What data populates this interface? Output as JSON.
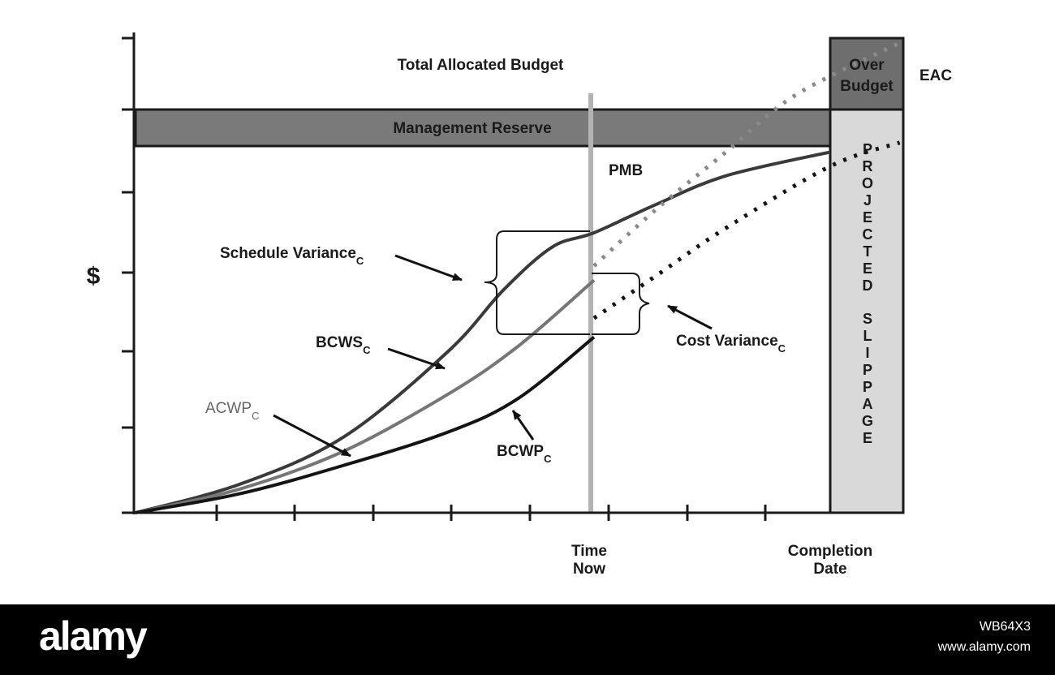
{
  "chart_data": {
    "type": "line",
    "title": "Total Allocated Budget",
    "ylabel": "$",
    "xlabel": "",
    "x_markers": [
      "Time Now",
      "Completion Date"
    ],
    "band_labels": {
      "management_reserve": "Management Reserve",
      "over_budget": [
        "Over",
        "Budget"
      ],
      "eac": "EAC",
      "pmb": "PMB",
      "projected_slippage": "PROJECTED SLIPPAGE"
    },
    "annotations": {
      "schedule_variance": {
        "main": "Schedule Variance",
        "sub": "C"
      },
      "cost_variance": {
        "main": "Cost Variance",
        "sub": "C"
      },
      "bcws": {
        "main": "BCWS",
        "sub": "C"
      },
      "acwp": {
        "main": "ACWP",
        "sub": "C"
      },
      "bcwp": {
        "main": "BCWP",
        "sub": "C"
      }
    },
    "x_domain": [
      0,
      1
    ],
    "y_domain": [
      0,
      1
    ],
    "time_now": 0.66,
    "completion": 1.0,
    "slippage_end": 1.1,
    "pmb_level": 0.76,
    "mr_top": 0.84,
    "eac_top": 0.93,
    "series": [
      {
        "name": "BCWS",
        "style": "solid",
        "color": "#3a3a3a",
        "x": [
          0,
          0.15,
          0.3,
          0.45,
          0.53,
          0.6,
          0.66,
          0.75,
          0.85,
          1.0
        ],
        "y": [
          0,
          0.06,
          0.16,
          0.34,
          0.47,
          0.56,
          0.59,
          0.65,
          0.71,
          0.76
        ]
      },
      {
        "name": "ACWP",
        "style": "solid",
        "color": "#767676",
        "x": [
          0,
          0.15,
          0.3,
          0.45,
          0.55,
          0.66
        ],
        "y": [
          0,
          0.05,
          0.13,
          0.25,
          0.35,
          0.49
        ]
      },
      {
        "name": "ACWP",
        "style": "dotted",
        "color": "#8a8a8a",
        "x": [
          0.66,
          0.75,
          0.85,
          0.95,
          1.1
        ],
        "y": [
          0.52,
          0.64,
          0.76,
          0.88,
          0.99
        ]
      },
      {
        "name": "BCWP",
        "style": "solid",
        "color": "#141414",
        "x": [
          0,
          0.15,
          0.3,
          0.45,
          0.55,
          0.66
        ],
        "y": [
          0,
          0.04,
          0.1,
          0.17,
          0.24,
          0.37
        ]
      },
      {
        "name": "BCWP",
        "style": "dotted",
        "color": "#141414",
        "x": [
          0.66,
          0.75,
          0.85,
          1.0,
          1.1
        ],
        "y": [
          0.41,
          0.5,
          0.6,
          0.73,
          0.78
        ]
      }
    ]
  },
  "watermark": {
    "logo": "alamy",
    "image_id": "WB64X3",
    "url": "www.alamy.com"
  }
}
